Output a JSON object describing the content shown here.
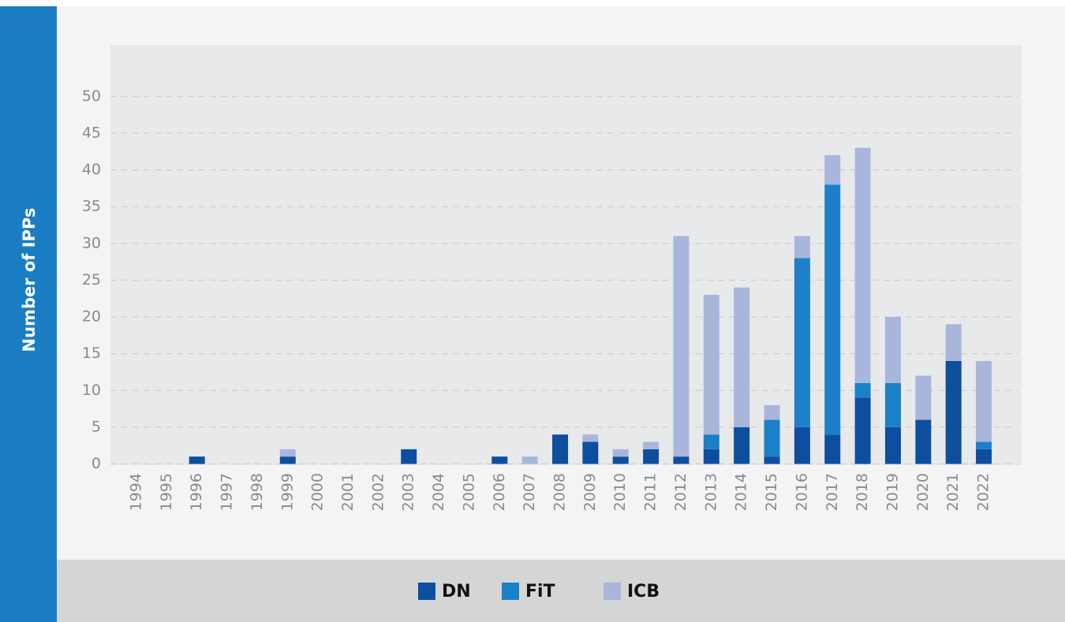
{
  "chart_data": {
    "type": "stacked_bar",
    "ylabel": "Number of IPPs",
    "categories": [
      "1994",
      "1995",
      "1996",
      "1997",
      "1998",
      "1999",
      "2000",
      "2001",
      "2002",
      "2003",
      "2004",
      "2005",
      "2006",
      "2007",
      "2008",
      "2009",
      "2010",
      "2011",
      "2012",
      "2013",
      "2014",
      "2015",
      "2016",
      "2017",
      "2018",
      "2019",
      "2020",
      "2021",
      "2022"
    ],
    "series": [
      {
        "name": "DN",
        "color": "#0e4e9f",
        "values": [
          0,
          0,
          1,
          0,
          0,
          1,
          0,
          0,
          0,
          2,
          0,
          0,
          1,
          0,
          4,
          3,
          1,
          2,
          1,
          2,
          5,
          1,
          5,
          4,
          9,
          5,
          6,
          14,
          2
        ]
      },
      {
        "name": "FiT",
        "color": "#1b80c8",
        "values": [
          0,
          0,
          0,
          0,
          0,
          0,
          0,
          0,
          0,
          0,
          0,
          0,
          0,
          0,
          0,
          0,
          0,
          0,
          0,
          2,
          0,
          5,
          23,
          34,
          2,
          6,
          0,
          0,
          1
        ]
      },
      {
        "name": "ICB",
        "color": "#a9b6dc",
        "values": [
          0,
          0,
          0,
          0,
          0,
          1,
          0,
          0,
          0,
          0,
          0,
          0,
          0,
          1,
          0,
          1,
          1,
          1,
          30,
          19,
          19,
          2,
          3,
          4,
          32,
          9,
          6,
          5,
          11
        ]
      }
    ],
    "ylim": [
      0,
      57
    ],
    "yticks": [
      0,
      5,
      10,
      15,
      20,
      25,
      30,
      35,
      40,
      45,
      50
    ],
    "grid": true,
    "legend": "bottom"
  }
}
